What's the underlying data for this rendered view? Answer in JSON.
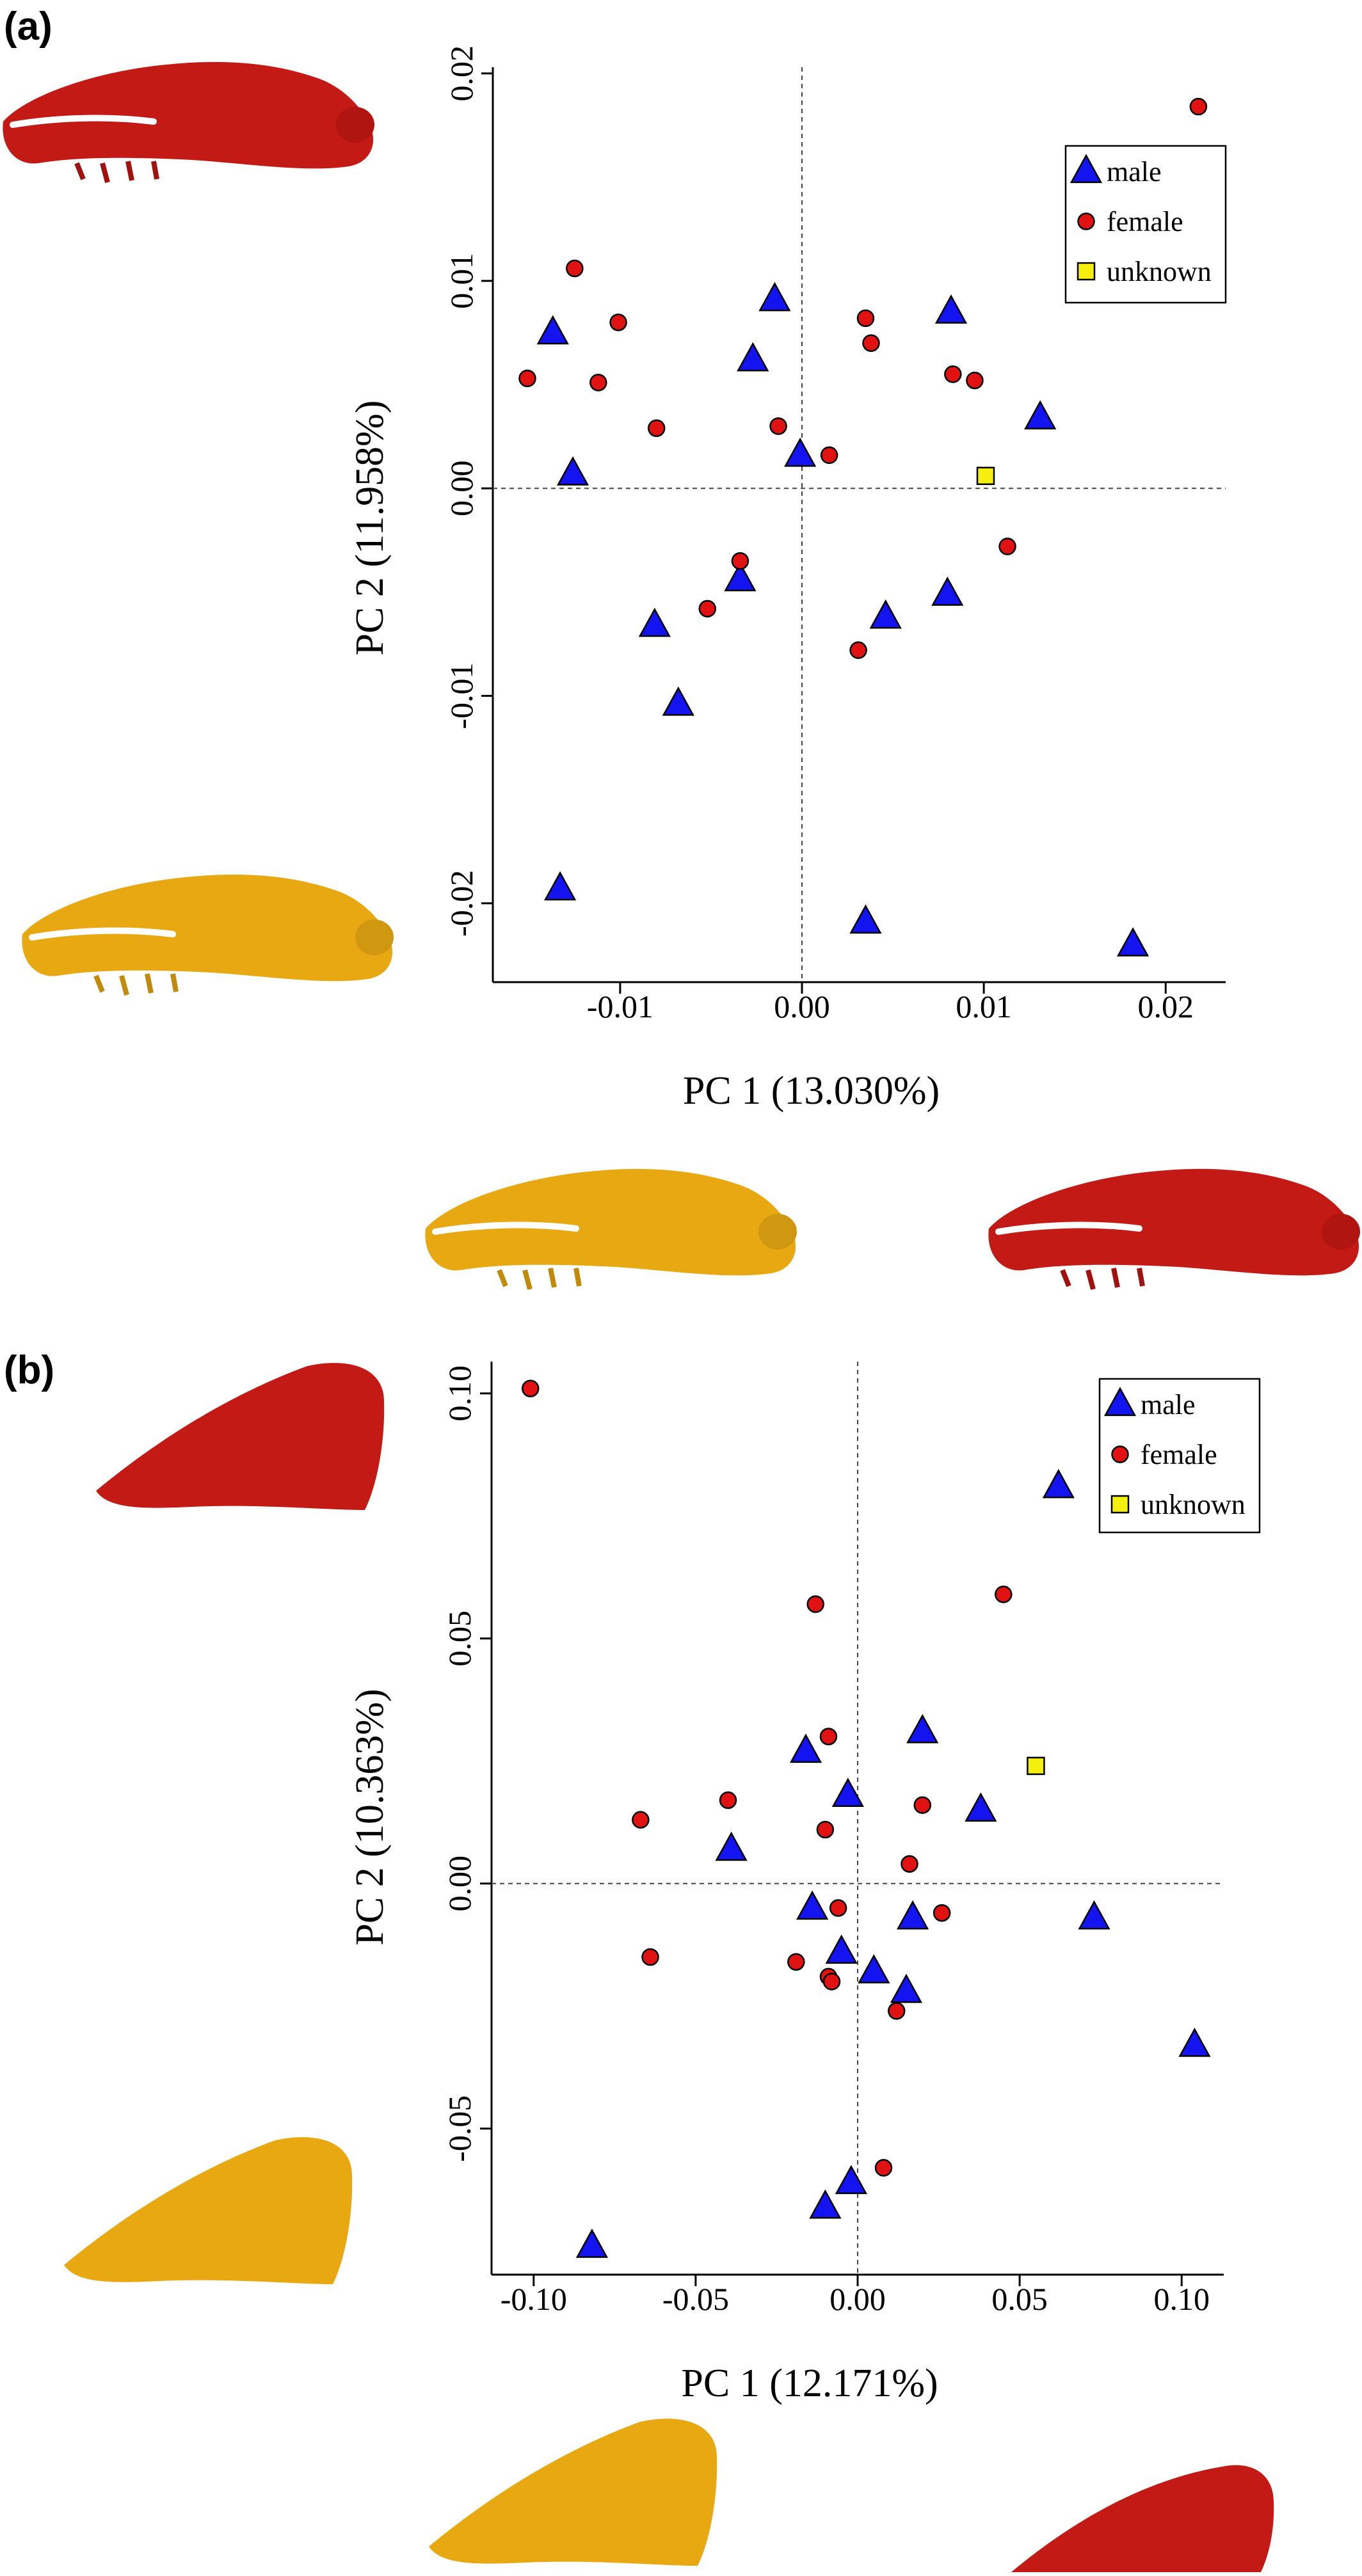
{
  "colors": {
    "male": "#1414f0",
    "female": "#e11212",
    "unknown": "#f5ef10",
    "red_model": "#c41a16",
    "gold_model": "#e8a812"
  },
  "chart_data": [
    {
      "panel_label": "(a)",
      "type": "scatter",
      "title": "",
      "xlabel": "PC 1 (13.030%)",
      "ylabel": "PC 2 (11.958%)",
      "xlim": [
        -0.017,
        0.0233
      ],
      "ylim": [
        -0.0238,
        0.0203
      ],
      "xticks": [
        -0.01,
        0.0,
        0.01,
        0.02
      ],
      "xtick_labels": [
        "-0.01",
        "0.00",
        "0.01",
        "0.02"
      ],
      "yticks": [
        -0.02,
        -0.01,
        0.0,
        0.01,
        0.02
      ],
      "ytick_labels": [
        "-0.02",
        "-0.01",
        "0.00",
        "0.01",
        "0.02"
      ],
      "reference_lines": {
        "x": 0,
        "y": 0
      },
      "grid": false,
      "legend_position": "top-right",
      "legend": [
        "male",
        "female",
        "unknown"
      ],
      "series": [
        {
          "name": "male",
          "marker": "triangle",
          "points": [
            [
              -0.0137,
              0.0075
            ],
            [
              -0.0126,
              0.0007
            ],
            [
              -0.0015,
              0.0091
            ],
            [
              -0.0027,
              0.0062
            ],
            [
              -0.0001,
              0.0016
            ],
            [
              0.0082,
              0.0085
            ],
            [
              0.0131,
              0.0034
            ],
            [
              -0.0081,
              -0.0066
            ],
            [
              -0.0034,
              -0.0044
            ],
            [
              0.0046,
              -0.0062
            ],
            [
              0.008,
              -0.0051
            ],
            [
              -0.0068,
              -0.0104
            ],
            [
              -0.0133,
              -0.0193
            ],
            [
              0.0035,
              -0.0209
            ],
            [
              0.0182,
              -0.022
            ]
          ]
        },
        {
          "name": "female",
          "marker": "circle",
          "points": [
            [
              -0.0151,
              0.0053
            ],
            [
              -0.0125,
              0.0106
            ],
            [
              -0.0101,
              0.008
            ],
            [
              -0.0112,
              0.0051
            ],
            [
              -0.008,
              0.0029
            ],
            [
              0.0035,
              0.0082
            ],
            [
              0.0038,
              0.007
            ],
            [
              0.0083,
              0.0055
            ],
            [
              0.0095,
              0.0052
            ],
            [
              -0.0013,
              0.003
            ],
            [
              0.0015,
              0.0016
            ],
            [
              0.0113,
              -0.0028
            ],
            [
              -0.0034,
              -0.0035
            ],
            [
              -0.0052,
              -0.0058
            ],
            [
              0.0031,
              -0.0078
            ],
            [
              0.0218,
              0.0184
            ]
          ]
        },
        {
          "name": "unknown",
          "marker": "square",
          "points": [
            [
              0.0101,
              0.0006
            ]
          ]
        }
      ]
    },
    {
      "panel_label": "(b)",
      "type": "scatter",
      "title": "",
      "xlabel": "PC 1 (12.171%)",
      "ylabel": "PC 2 (10.363%)",
      "xlim": [
        -0.113,
        0.113
      ],
      "ylim": [
        -0.0798,
        0.1065
      ],
      "xticks": [
        -0.1,
        -0.05,
        0.0,
        0.05,
        0.1
      ],
      "xtick_labels": [
        "-0.10",
        "-0.05",
        "0.00",
        "0.05",
        "0.10"
      ],
      "yticks": [
        -0.05,
        0.0,
        0.05,
        0.1
      ],
      "ytick_labels": [
        "-0.05",
        "0.00",
        "0.05",
        "0.10"
      ],
      "reference_lines": {
        "x": 0,
        "y": 0
      },
      "grid": false,
      "legend_position": "top-right",
      "legend": [
        "male",
        "female",
        "unknown"
      ],
      "series": [
        {
          "name": "male",
          "marker": "triangle",
          "points": [
            [
              0.062,
              0.081
            ],
            [
              -0.016,
              0.027
            ],
            [
              0.02,
              0.031
            ],
            [
              -0.003,
              0.018
            ],
            [
              0.038,
              0.015
            ],
            [
              -0.039,
              0.007
            ],
            [
              -0.014,
              -0.005
            ],
            [
              0.017,
              -0.007
            ],
            [
              0.073,
              -0.007
            ],
            [
              -0.005,
              -0.014
            ],
            [
              0.005,
              -0.018
            ],
            [
              0.015,
              -0.022
            ],
            [
              0.104,
              -0.033
            ],
            [
              -0.002,
              -0.061
            ],
            [
              -0.01,
              -0.066
            ],
            [
              -0.082,
              -0.074
            ]
          ]
        },
        {
          "name": "female",
          "marker": "circle",
          "points": [
            [
              -0.101,
              0.101
            ],
            [
              -0.013,
              0.057
            ],
            [
              0.045,
              0.059
            ],
            [
              -0.009,
              0.03
            ],
            [
              -0.04,
              0.017
            ],
            [
              0.02,
              0.016
            ],
            [
              -0.067,
              0.013
            ],
            [
              -0.01,
              0.011
            ],
            [
              0.016,
              0.004
            ],
            [
              0.026,
              -0.006
            ],
            [
              -0.006,
              -0.005
            ],
            [
              -0.064,
              -0.015
            ],
            [
              -0.019,
              -0.016
            ],
            [
              -0.009,
              -0.019
            ],
            [
              -0.008,
              -0.02
            ],
            [
              0.012,
              -0.026
            ],
            [
              0.008,
              -0.058
            ]
          ]
        },
        {
          "name": "unknown",
          "marker": "square",
          "points": [
            [
              0.055,
              0.024
            ]
          ]
        }
      ]
    }
  ]
}
